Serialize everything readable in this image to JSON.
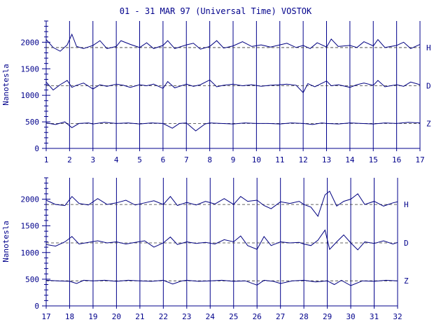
{
  "chart_data": {
    "type": "line",
    "title": "01 - 31 MAR 97 (Universal Time) VOSTOK",
    "ylabel": "Nanotesla",
    "color": "#00008b",
    "panels": [
      {
        "x_ticks": [
          "1",
          "2",
          "3",
          "4",
          "5",
          "6",
          "7",
          "8",
          "9",
          "10",
          "11",
          "12",
          "13",
          "14",
          "15",
          "16",
          "17"
        ],
        "xlim": [
          1,
          17
        ],
        "ylim": [
          0,
          2400
        ],
        "y_ticks": [
          "0",
          "500",
          "1000",
          "1500",
          "2000"
        ],
        "series": [
          {
            "name": "H",
            "baseline": 1900,
            "x": [
              1,
              1.3,
              1.6,
              1.9,
              2.1,
              2.3,
              2.6,
              3,
              3.3,
              3.6,
              4,
              4.2,
              4.6,
              5,
              5.3,
              5.6,
              6,
              6.2,
              6.5,
              7,
              7.3,
              7.6,
              8,
              8.3,
              8.6,
              9,
              9.4,
              9.8,
              10.2,
              10.6,
              11,
              11.3,
              11.7,
              12,
              12.3,
              12.6,
              13,
              13.2,
              13.5,
              14,
              14.3,
              14.6,
              15,
              15.2,
              15.5,
              16,
              16.3,
              16.6,
              17
            ],
            "y": [
              2050,
              1900,
              1830,
              1950,
              2150,
              1920,
              1880,
              1940,
              2030,
              1880,
              1920,
              2030,
              1960,
              1900,
              1990,
              1880,
              1940,
              2030,
              1880,
              1950,
              1980,
              1870,
              1920,
              2030,
              1890,
              1930,
              2010,
              1920,
              1950,
              1910,
              1950,
              1980,
              1900,
              1940,
              1880,
              1990,
              1910,
              2060,
              1920,
              1940,
              1900,
              2010,
              1930,
              2050,
              1900,
              1940,
              2000,
              1880,
              1960
            ]
          },
          {
            "name": "D",
            "baseline": 1180,
            "x": [
              1,
              1.3,
              1.6,
              1.9,
              2.1,
              2.3,
              2.6,
              3,
              3.3,
              3.6,
              4,
              4.3,
              4.6,
              5,
              5.3,
              5.6,
              6,
              6.2,
              6.5,
              7,
              7.3,
              7.6,
              8,
              8.3,
              8.6,
              9,
              9.4,
              9.8,
              10.2,
              10.6,
              11,
              11.3,
              11.7,
              12,
              12.2,
              12.5,
              13,
              13.2,
              13.5,
              14,
              14.3,
              14.6,
              15,
              15.2,
              15.5,
              16,
              16.3,
              16.6,
              17
            ],
            "y": [
              1250,
              1100,
              1200,
              1280,
              1150,
              1190,
              1230,
              1120,
              1200,
              1170,
              1210,
              1190,
              1150,
              1200,
              1180,
              1210,
              1130,
              1260,
              1140,
              1210,
              1170,
              1200,
              1290,
              1160,
              1190,
              1210,
              1180,
              1200,
              1170,
              1190,
              1200,
              1210,
              1190,
              1050,
              1220,
              1160,
              1270,
              1180,
              1200,
              1150,
              1200,
              1230,
              1190,
              1280,
              1160,
              1200,
              1170,
              1250,
              1200
            ]
          },
          {
            "name": "Z",
            "baseline": 470,
            "x": [
              1,
              1.4,
              1.8,
              2.1,
              2.4,
              2.8,
              3,
              3.5,
              4,
              4.5,
              5,
              5.5,
              6,
              6.4,
              6.7,
              7,
              7.4,
              7.8,
              8,
              8.5,
              9,
              9.5,
              10,
              10.5,
              11,
              11.5,
              12,
              12.4,
              12.8,
              13,
              13.5,
              14,
              14.5,
              15,
              15.5,
              16,
              16.5,
              17
            ],
            "y": [
              480,
              450,
              500,
              390,
              470,
              480,
              460,
              490,
              470,
              480,
              460,
              480,
              470,
              380,
              470,
              480,
              330,
              460,
              480,
              470,
              460,
              480,
              470,
              470,
              460,
              480,
              470,
              450,
              480,
              470,
              460,
              480,
              470,
              460,
              480,
              470,
              490,
              480
            ]
          }
        ]
      },
      {
        "x_ticks": [
          "17",
          "18",
          "19",
          "20",
          "21",
          "22",
          "23",
          "24",
          "25",
          "26",
          "27",
          "28",
          "29",
          "30",
          "31",
          "32"
        ],
        "xlim": [
          17,
          32
        ],
        "ylim": [
          0,
          2400
        ],
        "y_ticks": [
          "0",
          "500",
          "1000",
          "1500",
          "2000"
        ],
        "series": [
          {
            "name": "H",
            "baseline": 1900,
            "x": [
              17,
              17.4,
              17.8,
              18.1,
              18.4,
              18.8,
              19.2,
              19.6,
              20,
              20.4,
              20.8,
              21.2,
              21.6,
              22,
              22.3,
              22.6,
              23,
              23.4,
              23.8,
              24.2,
              24.6,
              25,
              25.3,
              25.6,
              26,
              26.3,
              26.6,
              27,
              27.4,
              27.8,
              28,
              28.3,
              28.6,
              28.9,
              29.1,
              29.4,
              29.7,
              30,
              30.3,
              30.6,
              31,
              31.4,
              31.8,
              32
            ],
            "y": [
              1980,
              1900,
              1880,
              2050,
              1920,
              1890,
              2010,
              1900,
              1930,
              1980,
              1890,
              1930,
              1970,
              1900,
              2050,
              1880,
              1940,
              1890,
              1960,
              1910,
              2010,
              1900,
              2050,
              1960,
              1980,
              1880,
              1820,
              1950,
              1920,
              1960,
              1900,
              1850,
              1680,
              2080,
              2150,
              1870,
              1960,
              2000,
              2100,
              1900,
              1960,
              1870,
              1930,
              1950
            ]
          },
          {
            "name": "D",
            "baseline": 1180,
            "x": [
              17,
              17.4,
              17.8,
              18.1,
              18.4,
              18.8,
              19.2,
              19.6,
              20,
              20.4,
              20.8,
              21.2,
              21.6,
              22,
              22.3,
              22.6,
              23,
              23.4,
              23.8,
              24.2,
              24.6,
              25,
              25.3,
              25.6,
              26,
              26.3,
              26.6,
              27,
              27.4,
              27.8,
              28,
              28.3,
              28.6,
              28.9,
              29.1,
              29.4,
              29.7,
              30,
              30.3,
              30.6,
              31,
              31.4,
              31.8,
              32
            ],
            "y": [
              1150,
              1120,
              1200,
              1300,
              1160,
              1190,
              1220,
              1180,
              1200,
              1160,
              1190,
              1220,
              1100,
              1180,
              1290,
              1150,
              1200,
              1170,
              1190,
              1160,
              1240,
              1200,
              1310,
              1130,
              1060,
              1300,
              1130,
              1200,
              1180,
              1190,
              1160,
              1130,
              1230,
              1420,
              1060,
              1200,
              1330,
              1180,
              1050,
              1200,
              1170,
              1220,
              1160,
              1190
            ]
          },
          {
            "name": "Z",
            "baseline": 470,
            "x": [
              17,
              17.5,
              18,
              18.3,
              18.6,
              19,
              19.5,
              20,
              20.5,
              21,
              21.5,
              22,
              22.4,
              22.8,
              23,
              23.5,
              24,
              24.5,
              25,
              25.5,
              26,
              26.3,
              26.7,
              27,
              27.5,
              28,
              28.5,
              29,
              29.3,
              29.6,
              30,
              30.5,
              31,
              31.5,
              32
            ],
            "y": [
              480,
              470,
              460,
              420,
              480,
              470,
              480,
              460,
              480,
              470,
              460,
              480,
              410,
              470,
              480,
              460,
              470,
              480,
              460,
              470,
              390,
              480,
              460,
              420,
              470,
              480,
              450,
              470,
              400,
              480,
              380,
              470,
              460,
              480,
              470
            ]
          }
        ]
      }
    ]
  }
}
